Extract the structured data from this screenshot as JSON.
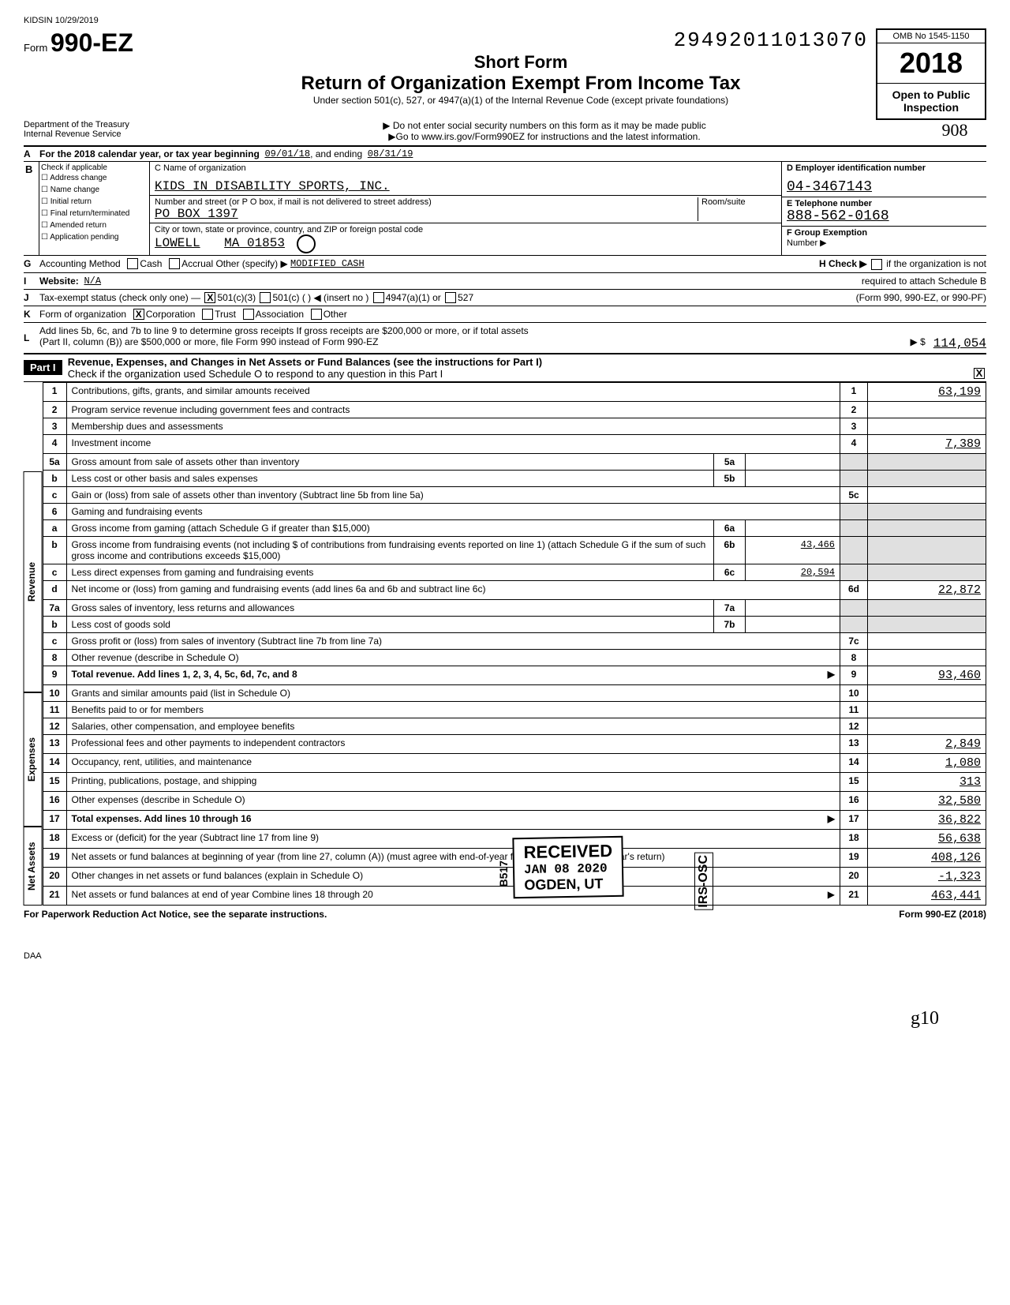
{
  "meta": {
    "topLeft": "KIDSIN 10/29/2019",
    "dln": "29492011013070",
    "omb": "OMB No 1545-1150"
  },
  "form": {
    "prefix": "Form",
    "number": "990-EZ",
    "shortForm": "Short Form",
    "title": "Return of Organization Exempt From Income Tax",
    "subtitle": "Under section 501(c), 527, or 4947(a)(1) of the Internal Revenue Code (except private foundations)",
    "warn": "Do not enter social security numbers on this form as it may be made public",
    "goto": "Go to www.irs.gov/Form990EZ for instructions and the latest information.",
    "year": "2018",
    "openPublic": "Open to Public Inspection",
    "dept1": "Department of the Treasury",
    "dept2": "Internal Revenue Service",
    "handwrite": "908"
  },
  "lineA": {
    "text": "For the 2018 calendar year, or tax year beginning",
    "begin": "09/01/18",
    "mid": ", and ending",
    "end": "08/31/19"
  },
  "sectionB": {
    "label": "Check if applicable",
    "checks": [
      "Address change",
      "Name change",
      "Initial return",
      "Final return/terminated",
      "Amended return",
      "Application pending"
    ],
    "cLabel": "C  Name of organization",
    "orgName": "KIDS IN DISABILITY SPORTS, INC.",
    "addrLabel": "Number and street (or P O box, if mail is not delivered to street address)",
    "roomLabel": "Room/suite",
    "address": "PO BOX 1397",
    "cityLabel": "City or town, state or province, country, and ZIP or foreign postal code",
    "city": "LOWELL",
    "state": "MA 01853",
    "dLabel": "D  Employer identification number",
    "ein": "04-3467143",
    "eLabel": "E  Telephone number",
    "phone": "888-562-0168",
    "fLabel": "F  Group Exemption",
    "fNumber": "Number ▶"
  },
  "lineG": {
    "label": "Accounting Method",
    "opts": [
      "Cash",
      "Accrual",
      "Other (specify) ▶"
    ],
    "otherVal": "MODIFIED CASH",
    "hLabel": "H  Check ▶",
    "hText1": "if the organization is not",
    "hText2": "required to attach Schedule B",
    "hText3": "(Form 990, 990-EZ, or 990-PF)"
  },
  "lineI": {
    "label": "Website:",
    "value": "N/A"
  },
  "lineJ": {
    "label": "Tax-exempt status (check only one) —",
    "opts": [
      "501(c)(3)",
      "501(c) (        ) ◀ (insert no )",
      "4947(a)(1) or",
      "527"
    ]
  },
  "lineK": {
    "label": "Form of organization",
    "opts": [
      "Corporation",
      "Trust",
      "Association",
      "Other"
    ]
  },
  "lineL": {
    "text1": "Add lines 5b, 6c, and 7b to line 9 to determine gross receipts  If gross receipts are $200,000 or more, or if total assets",
    "text2": "(Part II, column (B)) are $500,000 or more, file Form 990 instead of Form 990-EZ",
    "arrow": "▶ $",
    "value": "114,054"
  },
  "part1": {
    "header": "Part I",
    "title": "Revenue, Expenses, and Changes in Net Assets or Fund Balances (see the instructions for Part I)",
    "check": "Check if the organization used Schedule O to respond to any question in this Part I",
    "checked": "X"
  },
  "sideLabels": {
    "revenue": "Revenue",
    "expenses": "Expenses",
    "netAssets": "Net Assets"
  },
  "lines": [
    {
      "n": "1",
      "desc": "Contributions, gifts, grants, and similar amounts received",
      "rn": "1",
      "rv": "63,199"
    },
    {
      "n": "2",
      "desc": "Program service revenue including government fees and contracts",
      "rn": "2",
      "rv": ""
    },
    {
      "n": "3",
      "desc": "Membership dues and assessments",
      "rn": "3",
      "rv": ""
    },
    {
      "n": "4",
      "desc": "Investment income",
      "rn": "4",
      "rv": "7,389"
    },
    {
      "n": "5a",
      "desc": "Gross amount from sale of assets other than inventory",
      "mn": "5a",
      "mv": "",
      "shaded": true
    },
    {
      "n": "b",
      "desc": "Less cost or other basis and sales expenses",
      "mn": "5b",
      "mv": "",
      "shaded": true
    },
    {
      "n": "c",
      "desc": "Gain or (loss) from sale of assets other than inventory (Subtract line 5b from line 5a)",
      "rn": "5c",
      "rv": ""
    },
    {
      "n": "6",
      "desc": "Gaming and fundraising events",
      "shaded": true
    },
    {
      "n": "a",
      "desc": "Gross income from gaming (attach Schedule G if greater than $15,000)",
      "mn": "6a",
      "mv": "",
      "shaded": true
    },
    {
      "n": "b",
      "desc": "Gross income from fundraising events (not including $                         of contributions from fundraising events reported on line 1) (attach Schedule G if the sum of such gross income and contributions exceeds $15,000)",
      "mn": "6b",
      "mv": "43,466",
      "shaded": true
    },
    {
      "n": "c",
      "desc": "Less direct expenses from gaming and fundraising events",
      "mn": "6c",
      "mv": "20,594",
      "shaded": true
    },
    {
      "n": "d",
      "desc": "Net income or (loss) from gaming and fundraising events (add lines 6a and 6b and subtract line 6c)",
      "rn": "6d",
      "rv": "22,872"
    },
    {
      "n": "7a",
      "desc": "Gross sales of inventory, less returns and allowances",
      "mn": "7a",
      "mv": "",
      "shaded": true
    },
    {
      "n": "b",
      "desc": "Less cost of goods sold",
      "mn": "7b",
      "mv": "",
      "shaded": true
    },
    {
      "n": "c",
      "desc": "Gross profit or (loss) from sales of inventory (Subtract line 7b from line 7a)",
      "rn": "7c",
      "rv": ""
    },
    {
      "n": "8",
      "desc": "Other revenue (describe in Schedule O)",
      "rn": "8",
      "rv": ""
    },
    {
      "n": "9",
      "desc": "Total revenue. Add lines 1, 2, 3, 4, 5c, 6d, 7c, and 8",
      "bold": true,
      "arrow": true,
      "rn": "9",
      "rv": "93,460"
    },
    {
      "n": "10",
      "desc": "Grants and similar amounts paid (list in Schedule O)",
      "rn": "10",
      "rv": ""
    },
    {
      "n": "11",
      "desc": "Benefits paid to or for members",
      "rn": "11",
      "rv": ""
    },
    {
      "n": "12",
      "desc": "Salaries, other compensation, and employee benefits",
      "rn": "12",
      "rv": ""
    },
    {
      "n": "13",
      "desc": "Professional fees and other payments to independent contractors",
      "rn": "13",
      "rv": "2,849"
    },
    {
      "n": "14",
      "desc": "Occupancy, rent, utilities, and maintenance",
      "rn": "14",
      "rv": "1,080"
    },
    {
      "n": "15",
      "desc": "Printing, publications, postage, and shipping",
      "rn": "15",
      "rv": "313"
    },
    {
      "n": "16",
      "desc": "Other expenses (describe in Schedule O)",
      "rn": "16",
      "rv": "32,580"
    },
    {
      "n": "17",
      "desc": "Total expenses. Add lines 10 through 16",
      "bold": true,
      "arrow": true,
      "rn": "17",
      "rv": "36,822"
    },
    {
      "n": "18",
      "desc": "Excess or (deficit) for the year (Subtract line 17 from line 9)",
      "rn": "18",
      "rv": "56,638"
    },
    {
      "n": "19",
      "desc": "Net assets or fund balances at beginning of year (from line 27, column (A)) (must agree with end-of-year figure reported on prior year's return)",
      "rn": "19",
      "rv": "408,126"
    },
    {
      "n": "20",
      "desc": "Other changes in net assets or fund balances (explain in Schedule O)",
      "rn": "20",
      "rv": "-1,323"
    },
    {
      "n": "21",
      "desc": "Net assets or fund balances at end of year  Combine lines 18 through 20",
      "arrow": true,
      "rn": "21",
      "rv": "463,441"
    }
  ],
  "stamp": {
    "received": "RECEIVED",
    "date": "JAN 08 2020",
    "loc": "OGDEN, UT",
    "irsOsc": "IRS-OSC",
    "b517": "B517"
  },
  "footer": {
    "left": "For Paperwork Reduction Act Notice, see the separate instructions.",
    "right": "Form 990-EZ (2018)",
    "daa": "DAA",
    "sig": "g10"
  }
}
